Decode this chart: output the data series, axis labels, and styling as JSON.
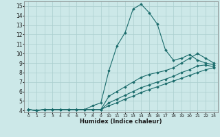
{
  "xlabel": "Humidex (Indice chaleur)",
  "xlim": [
    -0.5,
    23.5
  ],
  "ylim": [
    3.8,
    15.5
  ],
  "xticks": [
    0,
    1,
    2,
    3,
    4,
    5,
    6,
    7,
    8,
    9,
    10,
    11,
    12,
    13,
    14,
    15,
    16,
    17,
    18,
    19,
    20,
    21,
    22,
    23
  ],
  "yticks": [
    4,
    5,
    6,
    7,
    8,
    9,
    10,
    11,
    12,
    13,
    14,
    15
  ],
  "bg_color": "#cce8e8",
  "line_color": "#1a6b6b",
  "series": [
    {
      "x": [
        0,
        1,
        2,
        3,
        4,
        5,
        6,
        7,
        8,
        9,
        10,
        11,
        12,
        13,
        14,
        15,
        16,
        17,
        18,
        19,
        20,
        21,
        22,
        23
      ],
      "y": [
        4.1,
        4.0,
        4.1,
        4.1,
        4.1,
        4.1,
        4.1,
        4.1,
        4.5,
        4.8,
        8.2,
        10.8,
        12.2,
        14.7,
        15.2,
        14.3,
        13.1,
        10.4,
        9.3,
        9.5,
        9.9,
        9.3,
        9.0,
        8.8
      ]
    },
    {
      "x": [
        0,
        1,
        2,
        3,
        4,
        5,
        6,
        7,
        8,
        9,
        10,
        11,
        12,
        13,
        14,
        15,
        16,
        17,
        18,
        19,
        20,
        21,
        22,
        23
      ],
      "y": [
        4.1,
        4.0,
        4.1,
        4.1,
        4.1,
        4.1,
        4.1,
        4.1,
        4.1,
        4.1,
        5.5,
        6.0,
        6.5,
        7.0,
        7.5,
        7.8,
        8.0,
        8.2,
        8.5,
        9.0,
        9.5,
        10.0,
        9.5,
        9.0
      ]
    },
    {
      "x": [
        0,
        1,
        2,
        3,
        4,
        5,
        6,
        7,
        8,
        9,
        10,
        11,
        12,
        13,
        14,
        15,
        16,
        17,
        18,
        19,
        20,
        21,
        22,
        23
      ],
      "y": [
        4.1,
        4.0,
        4.1,
        4.1,
        4.1,
        4.1,
        4.1,
        4.1,
        4.1,
        4.1,
        4.8,
        5.2,
        5.6,
        6.0,
        6.4,
        6.7,
        7.0,
        7.3,
        7.6,
        8.0,
        8.3,
        8.7,
        8.8,
        8.6
      ]
    },
    {
      "x": [
        0,
        1,
        2,
        3,
        4,
        5,
        6,
        7,
        8,
        9,
        10,
        11,
        12,
        13,
        14,
        15,
        16,
        17,
        18,
        19,
        20,
        21,
        22,
        23
      ],
      "y": [
        4.1,
        4.0,
        4.1,
        4.1,
        4.1,
        4.1,
        4.1,
        4.1,
        4.1,
        4.1,
        4.5,
        4.8,
        5.2,
        5.5,
        5.9,
        6.2,
        6.5,
        6.8,
        7.1,
        7.4,
        7.7,
        8.0,
        8.3,
        8.5
      ]
    }
  ]
}
